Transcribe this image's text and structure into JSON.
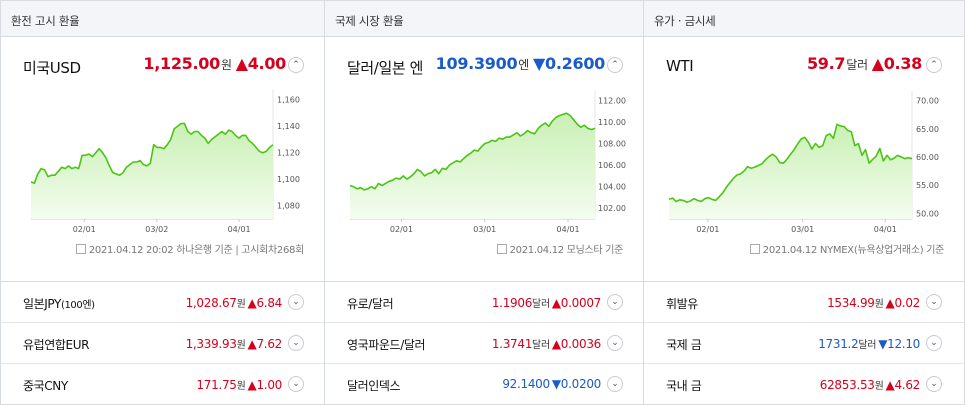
{
  "columns": [
    {
      "title": "환전 고시 환율",
      "main": {
        "name": "미국USD",
        "value": "1,125.00",
        "unit": "원",
        "dir": "up",
        "arrow": "▲",
        "change": "4.00"
      },
      "source": "2021.04.12 20:02 하나은행 기준 | 고시회차268회",
      "chart": {
        "type": "area",
        "y_ticks": [
          "1,160",
          "1,140",
          "1,120",
          "1,100",
          "1,080"
        ],
        "ylim": [
          1070,
          1165
        ],
        "x_ticks": [
          "02/01",
          "03/02",
          "04/01"
        ],
        "values": [
          1098,
          1097,
          1104,
          1108,
          1107,
          1102,
          1103,
          1103,
          1106,
          1109,
          1108,
          1110,
          1108,
          1109,
          1108,
          1118,
          1118,
          1119,
          1117,
          1120,
          1123,
          1120,
          1116,
          1110,
          1105,
          1104,
          1103,
          1105,
          1109,
          1111,
          1113,
          1113,
          1114,
          1111,
          1110,
          1112,
          1126,
          1124,
          1124,
          1123,
          1126,
          1130,
          1138,
          1140,
          1142,
          1142,
          1136,
          1134,
          1136,
          1136,
          1133,
          1131,
          1127,
          1130,
          1132,
          1134,
          1136,
          1134,
          1137,
          1136,
          1133,
          1131,
          1133,
          1133,
          1129,
          1127,
          1124,
          1121,
          1120,
          1121,
          1124,
          1126
        ]
      },
      "items": [
        {
          "name": "일본JPY",
          "name_small": "(100엔)",
          "value": "1,028.67",
          "unit": "원",
          "dir": "up",
          "arrow": "▲",
          "change": "6.84"
        },
        {
          "name": "유럽연합EUR",
          "name_small": "",
          "value": "1,339.93",
          "unit": "원",
          "dir": "up",
          "arrow": "▲",
          "change": "7.62"
        },
        {
          "name": "중국CNY",
          "name_small": "",
          "value": "171.75",
          "unit": "원",
          "dir": "up",
          "arrow": "▲",
          "change": "1.00"
        }
      ]
    },
    {
      "title": "국제 시장 환율",
      "main": {
        "name": "달러/일본 엔",
        "value": "109.3900",
        "unit": "엔",
        "dir": "down",
        "arrow": "▼",
        "change": "0.2600"
      },
      "source": "2021.04.12 모닝스타 기준",
      "chart": {
        "type": "area",
        "y_ticks": [
          "112.00",
          "110.00",
          "108.00",
          "106.00",
          "104.00",
          "102.00"
        ],
        "ylim": [
          101,
          112.5
        ],
        "x_ticks": [
          "02/01",
          "03/01",
          "04/01"
        ],
        "values": [
          104.1,
          104.0,
          103.8,
          103.9,
          103.7,
          103.8,
          104.0,
          103.8,
          104.3,
          104.1,
          104.3,
          104.5,
          104.6,
          104.8,
          104.7,
          105.0,
          104.7,
          104.9,
          105.2,
          105.6,
          105.4,
          105.0,
          105.2,
          105.3,
          105.6,
          105.2,
          105.7,
          105.6,
          106.0,
          106.2,
          106.4,
          106.3,
          106.6,
          106.9,
          107.1,
          107.4,
          107.3,
          107.7,
          108.0,
          108.1,
          108.3,
          108.2,
          108.5,
          108.4,
          108.6,
          108.6,
          108.8,
          109.0,
          108.7,
          108.9,
          109.2,
          109.0,
          108.9,
          109.4,
          109.7,
          109.9,
          109.6,
          110.1,
          110.4,
          110.6,
          110.7,
          110.8,
          110.6,
          110.2,
          109.8,
          109.5,
          109.7,
          109.4,
          109.3,
          109.4
        ]
      },
      "items": [
        {
          "name": "유로/달러",
          "name_small": "",
          "value": "1.1906",
          "unit": "달러",
          "dir": "up",
          "arrow": "▲",
          "change": "0.0007"
        },
        {
          "name": "영국파운드/달러",
          "name_small": "",
          "value": "1.3741",
          "unit": "달러",
          "dir": "up",
          "arrow": "▲",
          "change": "0.0036"
        },
        {
          "name": "달러인덱스",
          "name_small": "",
          "value": "92.1400",
          "unit": "",
          "dir": "down",
          "arrow": "▼",
          "change": "0.0200"
        }
      ]
    },
    {
      "title": "유가 · 금시세",
      "main": {
        "name": "WTI",
        "value": "59.7",
        "unit": "달러",
        "dir": "up",
        "arrow": "▲",
        "change": "0.38"
      },
      "source": "2021.04.12 NYMEX(뉴욕상업거래소) 기준",
      "chart": {
        "type": "area",
        "y_ticks": [
          "70.00",
          "65.00",
          "60.00",
          "55.00",
          "50.00"
        ],
        "ylim": [
          49,
          71
        ],
        "x_ticks": [
          "02/01",
          "03/01",
          "04/01"
        ],
        "values": [
          52.5,
          52.7,
          52.1,
          52.4,
          52.3,
          52.0,
          52.2,
          52.6,
          52.3,
          52.1,
          52.6,
          52.8,
          52.5,
          52.3,
          52.9,
          53.6,
          54.6,
          55.4,
          56.2,
          56.8,
          57.0,
          57.5,
          58.3,
          58.0,
          58.2,
          58.5,
          58.8,
          59.5,
          60.1,
          60.5,
          60.0,
          59.0,
          58.9,
          59.6,
          60.5,
          61.3,
          62.3,
          63.2,
          63.5,
          62.6,
          61.4,
          62.4,
          61.7,
          62.0,
          63.8,
          64.1,
          63.3,
          65.8,
          65.5,
          65.4,
          64.7,
          64.5,
          62.0,
          62.4,
          60.3,
          61.3,
          58.9,
          59.6,
          60.2,
          61.5,
          59.3,
          60.3,
          59.5,
          59.8,
          60.3,
          60.0,
          59.7,
          59.9,
          59.7
        ]
      },
      "items": [
        {
          "name": "휘발유",
          "name_small": "",
          "value": "1534.99",
          "unit": "원",
          "dir": "up",
          "arrow": "▲",
          "change": "0.02"
        },
        {
          "name": "국제 금",
          "name_small": "",
          "value": "1731.2",
          "unit": "달러",
          "dir": "down",
          "arrow": "▼",
          "change": "12.10"
        },
        {
          "name": "국내 금",
          "name_small": "",
          "value": "62853.53",
          "unit": "원",
          "dir": "up",
          "arrow": "▲",
          "change": "4.62"
        }
      ]
    }
  ],
  "colors": {
    "up": "#d6001c",
    "down": "#1a5bc9",
    "line": "#4cc414",
    "fill_top": "#c9f0b5",
    "fill_bottom": "#f4fcef"
  }
}
